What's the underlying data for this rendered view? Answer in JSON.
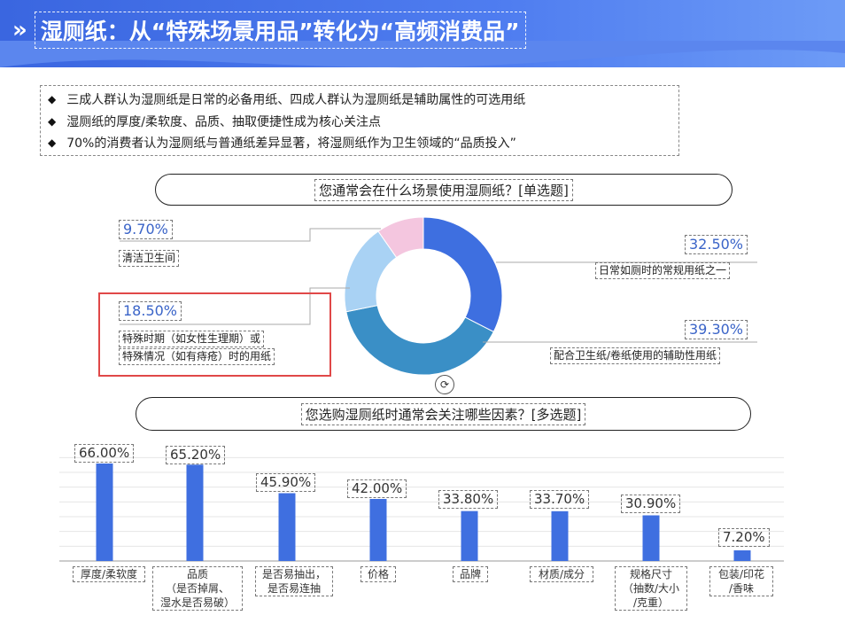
{
  "header": {
    "chevron": "»",
    "title": "湿厕纸：从“特殊场景用品”转化为“高频消费品”"
  },
  "bullets": [
    "三成人群认为湿厕纸是日常的必备用纸、四成人群认为湿厕纸是辅助属性的可选用纸",
    "湿厕纸的厚度/柔软度、品质、抽取便捷性成为核心关注点",
    "70%的消费者认为湿厕纸与普通纸差异显著，将湿厕纸作为卫生领域的“品质投入”"
  ],
  "question1": "您通常会在什么场景使用湿厕纸？[单选题]",
  "question2": "您选购湿厕纸时通常会关注哪些因素？[多选题]",
  "donut_labels": {
    "s1_pct": "32.50%",
    "s1_txt": "日常如厕时的常规用纸之一",
    "s2_pct": "39.30%",
    "s2_txt": "配合卫生纸/卷纸使用的辅助性用纸",
    "s3_pct": "18.50%",
    "s3_txt1": "特殊时期（如女性生理期）或",
    "s3_txt2": "特殊情况（如有痔疮）时的用纸",
    "s4_pct": "9.70%",
    "s4_txt": "清洁卫生间"
  },
  "colors": {
    "accent": "#3a66e0",
    "bar": "#3f6fe0",
    "slice1": "#3e6fe0",
    "slice2": "#3a8fc6",
    "slice3": "#a9d2f4",
    "slice4": "#f4c6df",
    "highlight": "#e04848"
  },
  "bar_labels": {
    "b1": "66.00%",
    "b2": "65.20%",
    "b3": "45.90%",
    "b4": "42.00%",
    "b5": "33.80%",
    "b6": "33.70%",
    "b7": "30.90%",
    "b8": "7.20%"
  },
  "categories": {
    "c1": "厚度/柔软度",
    "c2a": "品质",
    "c2b": "（是否掉屑、",
    "c2c": "湿水是否易破）",
    "c3a": "是否易抽出，",
    "c3b": "是否易连抽",
    "c4": "价格",
    "c5": "品牌",
    "c6": "材质/成分",
    "c7a": "规格尺寸",
    "c7b": "（抽数/大小",
    "c7c": "/克重）",
    "c8a": "包装/印花",
    "c8b": "/香味"
  },
  "chart_data": [
    {
      "type": "pie",
      "title": "您通常会在什么场景使用湿厕纸？[单选题]",
      "categories": [
        "日常如厕时的常规用纸之一",
        "配合卫生纸/卷纸使用的辅助性用纸",
        "特殊时期（如女性生理期）或特殊情况（如有痔疮）时的用纸",
        "清洁卫生间"
      ],
      "values": [
        32.5,
        39.3,
        18.5,
        9.7
      ]
    },
    {
      "type": "bar",
      "title": "您选购湿厕纸时通常会关注哪些因素？[多选题]",
      "categories": [
        "厚度/柔软度",
        "品质（是否掉屑、湿水是否易破）",
        "是否易抽出，是否易连抽",
        "价格",
        "品牌",
        "材质/成分",
        "规格尺寸（抽数/大小/克重）",
        "包装/印花/香味"
      ],
      "values": [
        66.0,
        65.2,
        45.9,
        42.0,
        33.8,
        33.7,
        30.9,
        7.2
      ],
      "ylim": [
        0,
        70
      ],
      "grid": true
    }
  ]
}
